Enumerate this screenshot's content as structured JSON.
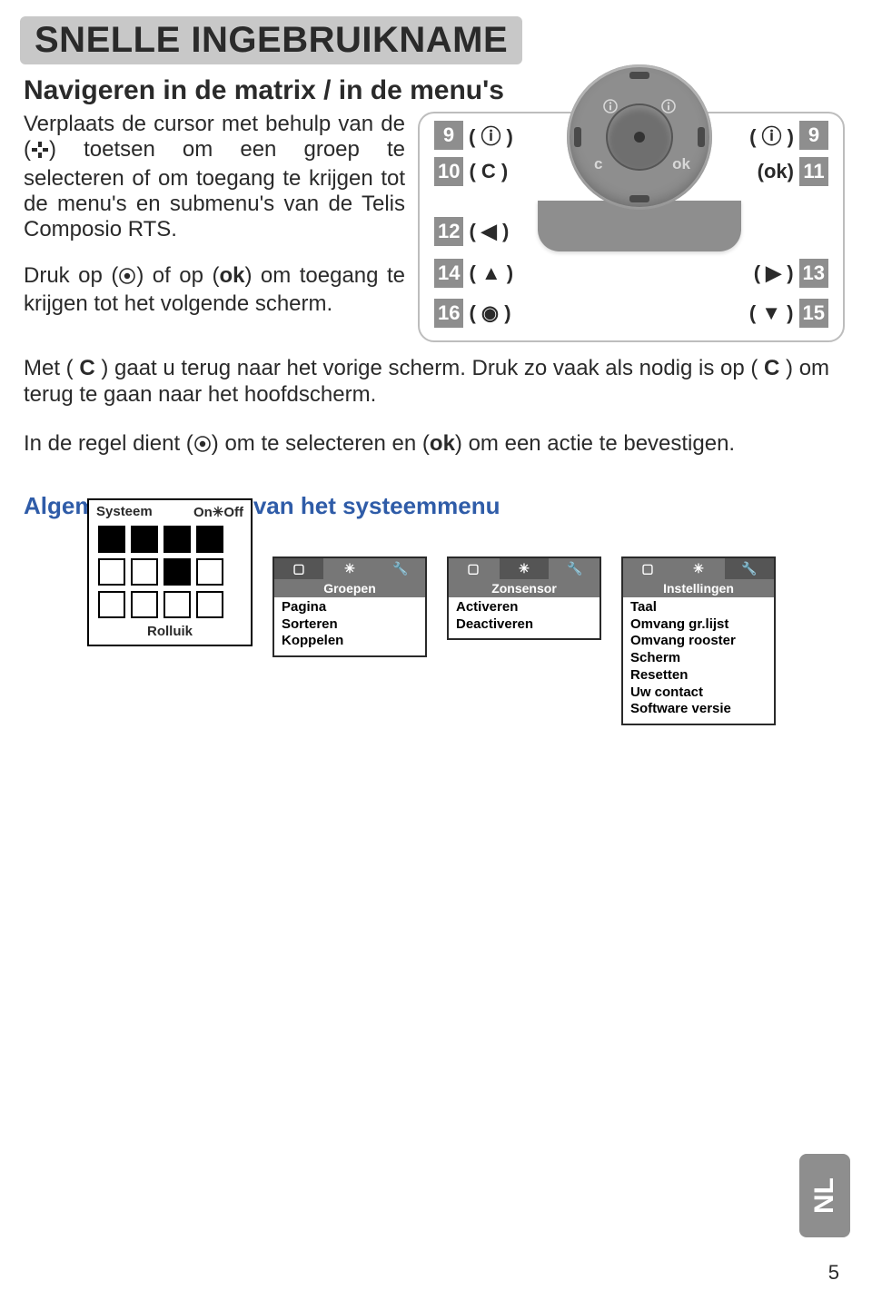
{
  "title": "SNELLE INGEBRUIKNAME",
  "subheading": "Navigeren in de matrix / in de menu's",
  "paragraphs": {
    "p1_a": "Verplaats de cursor met behulp van de (",
    "p1_b": ") toetsen om een groep te selecteren of om toegang te krijgen tot de menu's en submenu's van de Telis Composio RTS.",
    "p2_a": "Druk op (",
    "p2_b": ") of op (",
    "p2_ok": "ok",
    "p2_c": ") om toegang te krijgen tot het volgende scherm.",
    "p3_a": "Met (",
    "p3_c_sym": " C ",
    "p3_b": ") gaat u terug naar het vorige scherm. Druk zo vaak als nodig is op (",
    "p3_c": ") om terug te gaan naar het hoofdscherm.",
    "p4_a": "In de regel dient (",
    "p4_b": ") om te selecteren en (",
    "p4_ok": "ok",
    "p4_c": ") om een actie te bevestigen."
  },
  "diagram": {
    "wheel_glyphs": {
      "c": "c",
      "ok": "ok"
    },
    "callouts": {
      "l9": {
        "num": "9",
        "sym": "( ⓘ )"
      },
      "l10": {
        "num": "10",
        "sym": "( C )"
      },
      "l12": {
        "num": "12",
        "sym": "( ◀ )"
      },
      "l14": {
        "num": "14",
        "sym": "( ▲ )"
      },
      "l16": {
        "num": "16",
        "sym": "( ◉ )"
      },
      "r9": {
        "num": "9",
        "sym": "( ⓘ )"
      },
      "r11": {
        "num": "11",
        "sym": "(ok)"
      },
      "r13": {
        "num": "13",
        "sym": "( ▶ )"
      },
      "r15": {
        "num": "15",
        "sym": "( ▼ )"
      }
    }
  },
  "blue_heading": "Algemene structuur van het systeemmenu",
  "systeem_panel": {
    "hdr_left": "Systeem",
    "hdr_right": "On✳Off",
    "footer": "Rolluik",
    "grid": [
      [
        1,
        1,
        1,
        1
      ],
      [
        0,
        0,
        1,
        0
      ],
      [
        0,
        0,
        0,
        0
      ]
    ]
  },
  "panels": [
    {
      "title": "Groepen",
      "selected_tab": 0,
      "items": [
        "Pagina",
        "Sorteren",
        "Koppelen"
      ]
    },
    {
      "title": "Zonsensor",
      "selected_tab": 1,
      "items": [
        "Activeren",
        "Deactiveren"
      ]
    },
    {
      "title": "Instellingen",
      "selected_tab": 2,
      "items": [
        "Taal",
        "Omvang gr.lijst",
        "Omvang rooster",
        "Scherm",
        "Resetten",
        "Uw contact",
        "Software versie"
      ]
    }
  ],
  "side_tab": "NL",
  "page_number": "5",
  "colors": {
    "title_bg": "#c8c8c8",
    "text": "#2a2a2a",
    "blue": "#2f5ca8",
    "grey_panel": "#777777",
    "wheel_bg": "#8e8e8e"
  }
}
